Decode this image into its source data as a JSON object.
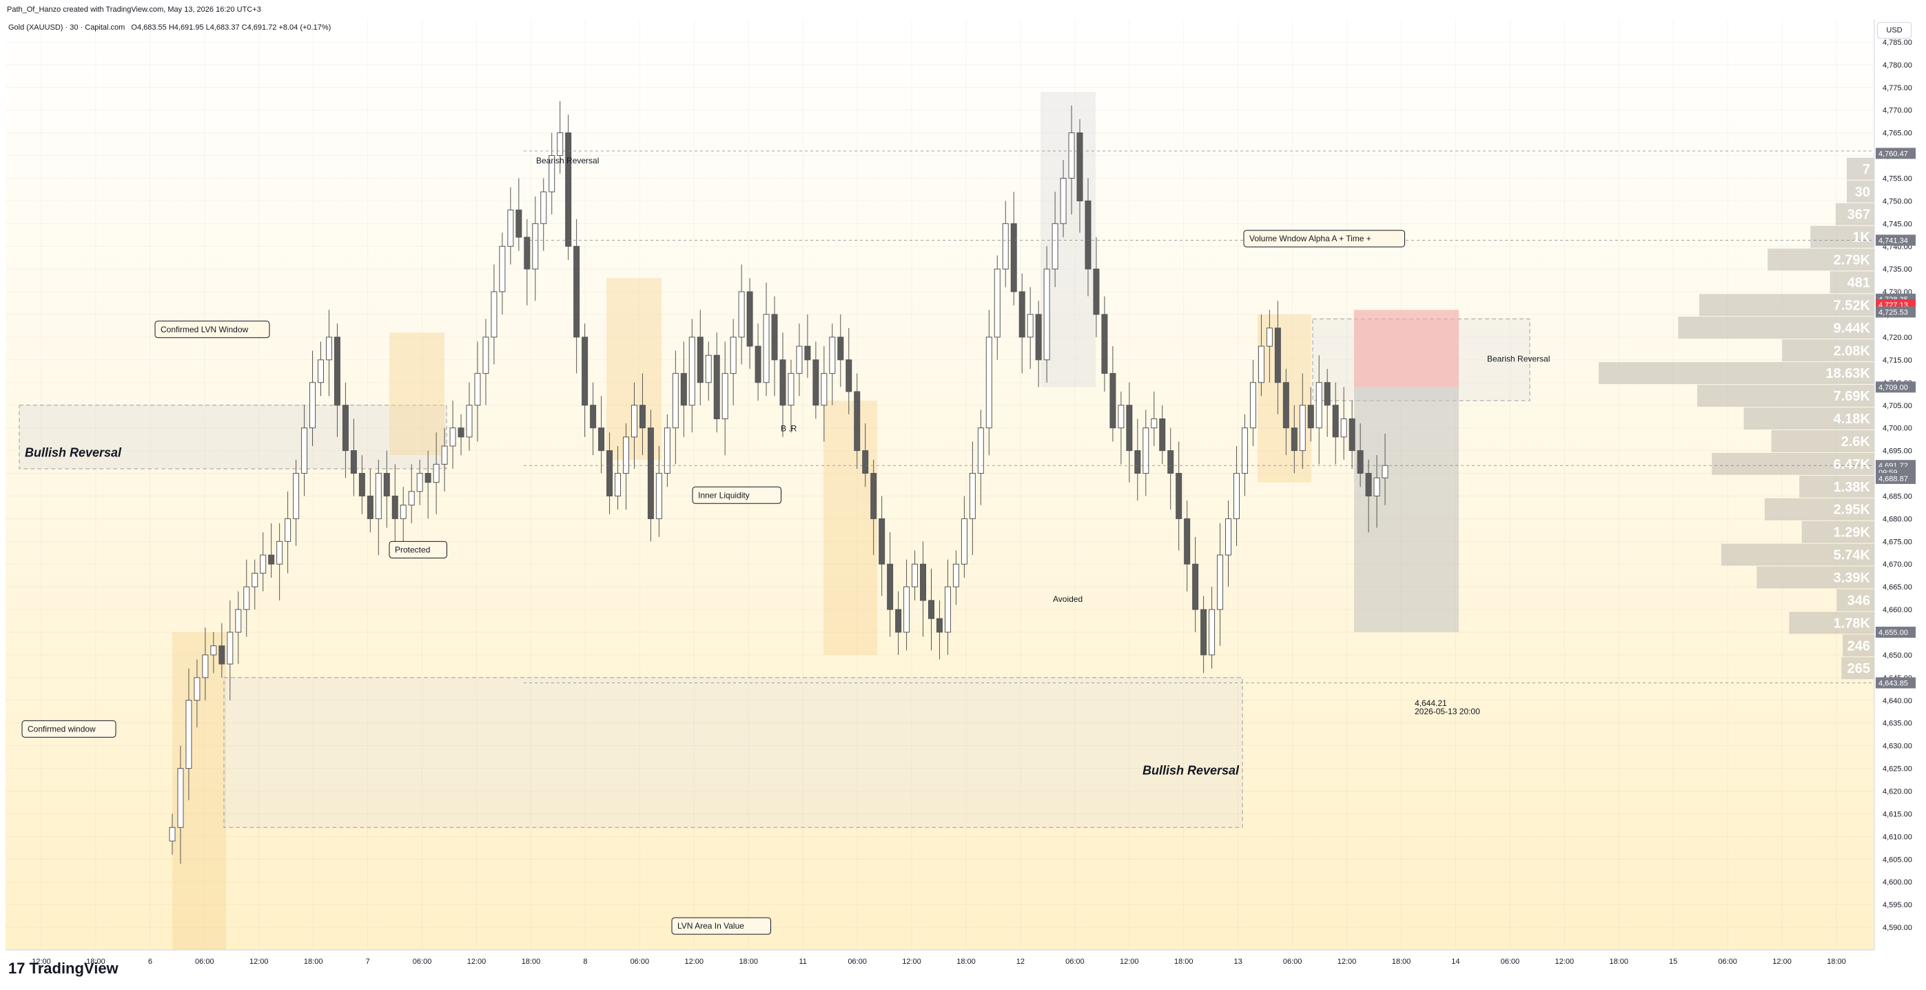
{
  "header": {
    "created_by": "Path_Of_Hanzo created with TradingView.com, May 13, 2026 16:20 UTC+3",
    "symbol": "Gold (XAUUSD) · 30 · Capital.com",
    "ohlc": "O4,683.55 H4,691.95 L4,683.37 C4,691.72 +8.04 (+0.17%)"
  },
  "currency_label": "USD",
  "brand": "TradingView",
  "chart_data": {
    "type": "candlestick",
    "title": "Gold (XAUUSD) · 30 · Capital.com",
    "ylim": [
      4585,
      4790
    ],
    "y_ticks": [
      4590,
      4595,
      4600,
      4605,
      4610,
      4615,
      4620,
      4625,
      4630,
      4635,
      4640,
      4645,
      4650,
      4655,
      4660,
      4665,
      4670,
      4675,
      4680,
      4685,
      4690,
      4695,
      4700,
      4705,
      4710,
      4715,
      4720,
      4725,
      4730,
      4735,
      4740,
      4745,
      4750,
      4755,
      4760,
      4765,
      4770,
      4775,
      4780,
      4785
    ],
    "x_tick_labels": [
      "12:00",
      "18:00",
      "6",
      "06:00",
      "12:00",
      "18:00",
      "7",
      "06:00",
      "12:00",
      "18:00",
      "8",
      "06:00",
      "12:00",
      "18:00",
      "11",
      "06:00",
      "12:00",
      "18:00",
      "12",
      "06:00",
      "12:00",
      "18:00",
      "13",
      "06:00",
      "12:00",
      "18:00",
      "14",
      "06:00",
      "12:00",
      "18:00",
      "15",
      "06:00",
      "12:00",
      "18:00"
    ],
    "price_labels": [
      {
        "value": "4,760.47",
        "color": "#787b86"
      },
      {
        "value": "4,741.34",
        "color": "#787b86"
      },
      {
        "value": "4,728.35",
        "color": "#787b86"
      },
      {
        "value": "4,727.13",
        "color": "#f23645"
      },
      {
        "value": "4,725.53",
        "color": "#787b86"
      },
      {
        "value": "4,709.00",
        "color": "#787b86"
      },
      {
        "value": "4,691.72",
        "color": "#787b86"
      },
      {
        "value": "09:59",
        "color": "#787b86"
      },
      {
        "value": "4,688.87",
        "color": "#787b86"
      },
      {
        "value": "4,655.00",
        "color": "#787b86"
      },
      {
        "value": "4,643.85",
        "color": "#787b86"
      }
    ],
    "volume_profile": [
      {
        "price": 4727,
        "label": "7.52K"
      },
      {
        "price": 4722,
        "label": "9.44K"
      },
      {
        "price": 4717,
        "label": "2.08K"
      },
      {
        "price": 4712,
        "label": "18.63K"
      },
      {
        "price": 4707,
        "label": "7.69K"
      },
      {
        "price": 4702,
        "label": "4.18K"
      },
      {
        "price": 4697,
        "label": "2.6K"
      },
      {
        "price": 4692,
        "label": "6.47K"
      },
      {
        "price": 4687,
        "label": "1.38K"
      },
      {
        "price": 4682,
        "label": "2.95K"
      },
      {
        "price": 4677,
        "label": "1.29K"
      },
      {
        "price": 4672,
        "label": "5.74K"
      },
      {
        "price": 4667,
        "label": "3.39K"
      },
      {
        "price": 4662,
        "label": "346"
      },
      {
        "price": 4657,
        "label": "1.78K"
      },
      {
        "price": 4652,
        "label": "246"
      },
      {
        "price": 4647,
        "label": "265"
      },
      {
        "price": 4737,
        "label": "2.79K"
      },
      {
        "price": 4732,
        "label": "481"
      },
      {
        "price": 4742,
        "label": "1K"
      },
      {
        "price": 4747,
        "label": "367"
      },
      {
        "price": 4752,
        "label": "30"
      },
      {
        "price": 4757,
        "label": "7"
      }
    ],
    "annotations": [
      {
        "text": "Bearish Reversal",
        "price": 4761
      },
      {
        "text": "Bullish Reversal",
        "price": 4697
      },
      {
        "text": "Confirmed LVN Window",
        "price": 4722
      },
      {
        "text": "Protected",
        "price": 4675
      },
      {
        "text": "Inner Liquidity",
        "price": 4687
      },
      {
        "text": "B .R",
        "price": 4702
      },
      {
        "text": "Avoided",
        "price": 4665
      },
      {
        "text": "Volume Wndow Alpha A + Time +",
        "price": 4742
      },
      {
        "text": "Bearish Reversal",
        "price": 4717
      },
      {
        "text": "Bullish Reversal",
        "price": 4627
      },
      {
        "text": "Confirmed window",
        "price": 4634
      },
      {
        "text": "LVN Area In Value",
        "price": 4590
      },
      {
        "text": "4,644.21",
        "price": 4644.21
      },
      {
        "text": "2026-05-13 20:00",
        "price": 4644.21
      }
    ],
    "series_closes": [
      4612,
      4625,
      4640,
      4645,
      4650,
      4652,
      4648,
      4655,
      4660,
      4665,
      4668,
      4672,
      4670,
      4675,
      4680,
      4690,
      4700,
      4710,
      4715,
      4720,
      4705,
      4695,
      4690,
      4685,
      4680,
      4690,
      4685,
      4680,
      4683,
      4686,
      4690,
      4688,
      4692,
      4696,
      4700,
      4698,
      4705,
      4712,
      4720,
      4730,
      4740,
      4748,
      4742,
      4735,
      4745,
      4752,
      4760,
      4765,
      4740,
      4720,
      4705,
      4700,
      4695,
      4685,
      4690,
      4698,
      4705,
      4700,
      4680,
      4690,
      4700,
      4712,
      4705,
      4720,
      4710,
      4716,
      4702,
      4712,
      4720,
      4730,
      4718,
      4710,
      4725,
      4715,
      4705,
      4712,
      4718,
      4715,
      4705,
      4712,
      4720,
      4715,
      4708,
      4695,
      4690,
      4680,
      4670,
      4660,
      4655,
      4665,
      4670,
      4662,
      4658,
      4655,
      4665,
      4670,
      4680,
      4690,
      4700,
      4720,
      4735,
      4745,
      4730,
      4720,
      4725,
      4715,
      4735,
      4745,
      4755,
      4765,
      4750,
      4735,
      4725,
      4712,
      4700,
      4705,
      4695,
      4690,
      4700,
      4702,
      4695,
      4690,
      4680,
      4670,
      4660,
      4650,
      4660,
      4672,
      4680,
      4690,
      4700,
      4710,
      4718,
      4722,
      4710,
      4700,
      4695,
      4705,
      4700,
      4710,
      4705,
      4698,
      4702,
      4695,
      4690,
      4685,
      4689,
      4691.72
    ]
  }
}
